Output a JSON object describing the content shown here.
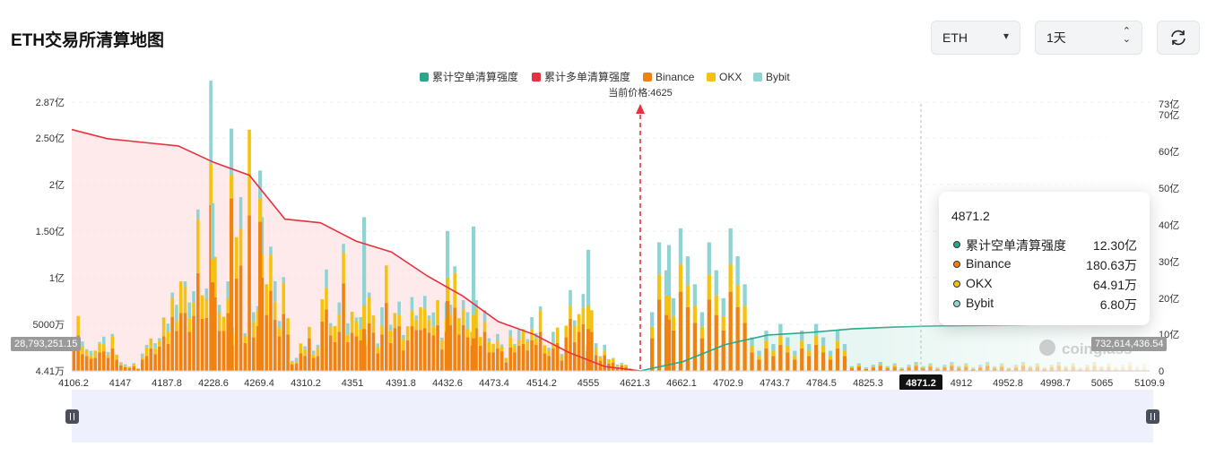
{
  "page_title": "ETH交易所清算地图",
  "controls": {
    "coin_select": "ETH",
    "range_select": "1天",
    "refresh_icon": "refresh-icon"
  },
  "legend": [
    "累计空单清算强度",
    "累计多单清算强度",
    "Binance",
    "OKX",
    "Bybit"
  ],
  "current_price_label": "当前价格:4625",
  "left_axis_ticks": [
    "2.87亿",
    "2.50亿",
    "2亿",
    "1.50亿",
    "1亿",
    "5000万",
    "4.41万"
  ],
  "right_axis_ticks": [
    "73亿",
    "70亿",
    "60亿",
    "50亿",
    "40亿",
    "30亿",
    "20亿",
    "10亿",
    "0"
  ],
  "x_ticks": [
    "4106.2",
    "4147",
    "4187.8",
    "4228.6",
    "4269.4",
    "4310.2",
    "4351",
    "4391.8",
    "4432.6",
    "4473.4",
    "4514.2",
    "4555",
    "4621.3",
    "4662.1",
    "4702.9",
    "4743.7",
    "4784.5",
    "4825.3",
    "4871.2",
    "4912",
    "4952.8",
    "4998.7",
    "5065",
    "5109.9"
  ],
  "left_badge": "28,793,251.15",
  "right_badge": "732,614,436.54",
  "watermark": "coinglass",
  "tooltip": {
    "title": "4871.2",
    "rows": [
      {
        "name": "累计空单清算强度",
        "value": "12.30亿",
        "color": "#26a889"
      },
      {
        "name": "Binance",
        "value": "180.63万",
        "color": "#f0820f"
      },
      {
        "name": "OKX",
        "value": "64.91万",
        "color": "#f5c20f"
      },
      {
        "name": "Bybit",
        "value": "6.80万",
        "color": "#8fd3d3"
      }
    ]
  },
  "colors": {
    "short_cum": "#26a889",
    "long_cum": "#e8313f",
    "binance": "#f0820f",
    "okx": "#f5c20f",
    "bybit": "#8fd3d3"
  },
  "chart_data": {
    "type": "bar",
    "title": "ETH交易所清算地图",
    "x_range": [
      4106.2,
      5109.9
    ],
    "ylim_left": [
      0,
      287000000
    ],
    "ylim_right": [
      0,
      7300000000
    ],
    "current_price": 4625,
    "series": [
      {
        "name": "Binance",
        "unit": "USD",
        "values_long_side": [
          0.24,
          0.38,
          0.18,
          0.16,
          0.13,
          0.14,
          0.2,
          0.21,
          0.14,
          0.24,
          0.12,
          0.06,
          0.04,
          0.03,
          0.05,
          0.02,
          0.12,
          0.16,
          0.24,
          0.18,
          0.26,
          0.37,
          0.29,
          0.58,
          0.43,
          0.62,
          0.62,
          0.42,
          0.59,
          1.05,
          0.56,
          0.57,
          1.78,
          0.79,
          0.43,
          0.43,
          0.62,
          0.27,
          0.99,
          1.13,
          0.3,
          1.67,
          0.36,
          0.48,
          1.0,
          0.6,
          0.86,
          0.55,
          0.37,
          0.61,
          0.39,
          0.07,
          0.08,
          0.19,
          0.16,
          0.35,
          0.14,
          0.16,
          0.53,
          0.66,
          0.38,
          0.31,
          0.42,
          0.94,
          0.31,
          0.41,
          0.37,
          0.33,
          0.27,
          0.51,
          0.41,
          0.19,
          0.39,
          0.73,
          0.3,
          0.46,
          0.48,
          0.22,
          0.33,
          0.48,
          0.44,
          0.44,
          0.46,
          0.41,
          0.38,
          0.49,
          0.23,
          0.42,
          0.49,
          0.68,
          0.39,
          0.49,
          0.36,
          0.27,
          0.46,
          0.27,
          0.42,
          0.2,
          0.2,
          0.24,
          0.21,
          0.09,
          0.25,
          0.2,
          0.27,
          0.29,
          0.22,
          0.33,
          0.28,
          0.42,
          0.19,
          0.16,
          0.24,
          0.3,
          0.11,
          0.36,
          0.56,
          0.31,
          0.42,
          0.5,
          0.21,
          0.42,
          0.17,
          0.11,
          0.17,
          0.08,
          0.09,
          0.04,
          0.06,
          0.04,
          0.02,
          0.01
        ]
      },
      {
        "name": "OKX",
        "unit": "USD"
      },
      {
        "name": "Bybit",
        "unit": "USD"
      },
      {
        "name": "累计多单清算强度",
        "unit": "USD",
        "values_sampled": [
          6600000000,
          6350000000,
          6250000000,
          6150000000,
          5700000000,
          5350000000,
          4150000000,
          4050000000,
          3550000000,
          3250000000,
          2600000000,
          2050000000,
          1350000000,
          1000000000,
          500000000,
          120000000,
          0
        ]
      },
      {
        "name": "累计空单清算强度",
        "unit": "USD",
        "values_sampled": [
          0,
          250000000,
          720000000,
          980000000,
          1050000000,
          1150000000,
          1200000000,
          1230000000,
          1240000000,
          1260000000,
          1300000000,
          1380000000,
          1450000000
        ]
      }
    ]
  }
}
